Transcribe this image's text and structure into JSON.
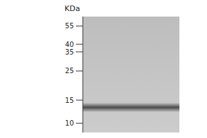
{
  "chart_data": {
    "type": "gel",
    "y_label": "KDa",
    "log": "y",
    "ylim": [
      8.5,
      65
    ],
    "yticks": [
      55,
      40,
      35,
      25,
      15,
      10
    ],
    "values": [
      13.2
    ]
  }
}
